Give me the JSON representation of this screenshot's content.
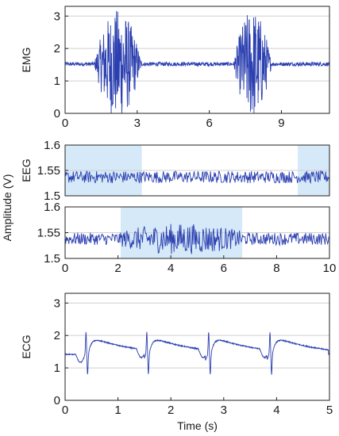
{
  "chart_data": [
    {
      "type": "line",
      "ylabel": "EMG",
      "xlim": [
        0,
        11
      ],
      "ylim": [
        0,
        3.3
      ],
      "xticks": [
        0,
        3,
        6,
        9
      ],
      "xtick_labels": [
        "0",
        "3",
        "6",
        "9"
      ],
      "yticks": [
        0,
        1,
        2,
        3
      ],
      "ytick_labels": [
        "0",
        "1",
        "2",
        "3"
      ],
      "grid": "horizontal",
      "line_color": "#2b3fb0",
      "signal": {
        "baseline": 1.52,
        "bursts": [
          {
            "start": 1.2,
            "end": 3.2,
            "peak_amplitude": 1.7
          },
          {
            "start": 7.0,
            "end": 8.6,
            "peak_amplitude": 1.7
          }
        ]
      }
    },
    {
      "type": "line",
      "ylabel": "EEG",
      "xlim": [
        0,
        10
      ],
      "ylim": [
        1.5,
        1.6
      ],
      "xticks": [],
      "yticks": [
        1.5,
        1.55,
        1.6
      ],
      "ytick_labels": [
        "1.5",
        "1.55",
        "1.6"
      ],
      "grid": "horizontal",
      "line_color": "#2b3fb0",
      "highlight_color": "#d6e9f8",
      "highlighted_regions": [
        [
          0,
          2.9
        ],
        [
          8.8,
          10
        ]
      ],
      "signal": {
        "baseline": 1.537,
        "noise_amplitude": 0.012
      }
    },
    {
      "type": "line",
      "ylabel": "",
      "xlim": [
        0,
        10
      ],
      "ylim": [
        1.5,
        1.6
      ],
      "xticks": [
        0,
        2,
        4,
        6,
        8,
        10
      ],
      "xtick_labels": [
        "0",
        "2",
        "4",
        "6",
        "8",
        "10"
      ],
      "yticks": [
        1.5,
        1.55,
        1.6
      ],
      "ytick_labels": [
        "1.5",
        "1.55",
        "1.6"
      ],
      "grid": "horizontal",
      "line_color": "#2b3fb0",
      "highlight_color": "#d6e9f8",
      "highlighted_regions": [
        [
          2.1,
          6.7
        ]
      ],
      "signal": {
        "baseline": 1.538,
        "noise_amplitude": 0.012,
        "burst": {
          "start": 2.1,
          "end": 6.7,
          "amplitude": 0.03
        }
      }
    },
    {
      "type": "line",
      "ylabel": "ECG",
      "xlabel": "Time (s)",
      "xlim": [
        0,
        5
      ],
      "ylim": [
        0,
        3.3
      ],
      "xticks": [
        0,
        1,
        2,
        3,
        4,
        5
      ],
      "xtick_labels": [
        "0",
        "1",
        "2",
        "3",
        "4",
        "5"
      ],
      "yticks": [
        0,
        1,
        2,
        3
      ],
      "ytick_labels": [
        "0",
        "1",
        "2",
        "3"
      ],
      "grid": "horizontal",
      "line_color": "#2b3fb0",
      "signal": {
        "baseline": 1.42,
        "beat_times": [
          0.4,
          1.55,
          2.72,
          3.88
        ],
        "r_peak": 2.1,
        "s_trough": 0.8,
        "t_wave_peak": 1.78
      }
    }
  ],
  "shared_ylabel": "Amplitude (V)"
}
